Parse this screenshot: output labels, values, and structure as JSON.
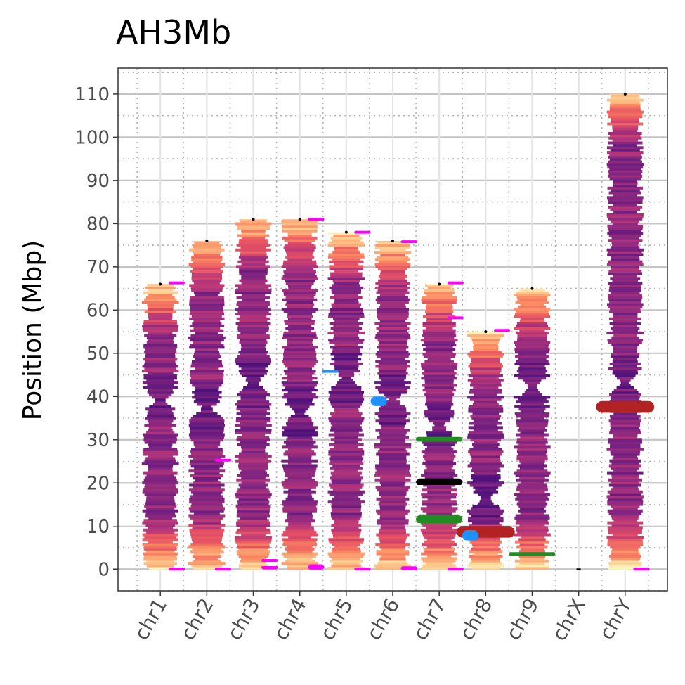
{
  "chart_data": {
    "type": "ideogram",
    "title": "AH3Mb",
    "ylabel": "Position (Mbp)",
    "xlabel": "",
    "ylim": [
      -5,
      116
    ],
    "yticks": [
      0,
      10,
      20,
      30,
      40,
      50,
      60,
      70,
      80,
      90,
      100,
      110
    ],
    "ytick_labels": [
      "0",
      "10",
      "20",
      "30",
      "40",
      "50",
      "60",
      "70",
      "80",
      "90",
      "100",
      "110"
    ],
    "grid": true,
    "legend": "none",
    "colormap": "magma",
    "chromosomes": [
      {
        "name": "chr1",
        "length": 66,
        "centromere": 39
      },
      {
        "name": "chr2",
        "length": 76,
        "centromere": 37
      },
      {
        "name": "chr3",
        "length": 81,
        "centromere": 43
      },
      {
        "name": "chr4",
        "length": 81,
        "centromere": 36
      },
      {
        "name": "chr5",
        "length": 78,
        "centromere": 44
      },
      {
        "name": "chr6",
        "length": 76,
        "centromere": 39
      },
      {
        "name": "chr7",
        "length": 66,
        "centromere": 33
      },
      {
        "name": "chr8",
        "length": 55,
        "centromere": 16
      },
      {
        "name": "chr9",
        "length": 65,
        "centromere": 42
      },
      {
        "name": "chrX",
        "length": 0,
        "centromere": 0
      },
      {
        "name": "chrY",
        "length": 110,
        "centromere": 43
      }
    ],
    "markers": [
      {
        "chrom": "chr1",
        "pos": 66.3,
        "color": "#ff00ff",
        "offset": 0.35,
        "width": 0.35,
        "thick": 0.6
      },
      {
        "chrom": "chr1",
        "pos": 0,
        "color": "#ff00ff",
        "offset": 0.35,
        "width": 0.35,
        "thick": 0.6
      },
      {
        "chrom": "chr2",
        "pos": 25.3,
        "color": "#ff00ff",
        "offset": 0.35,
        "width": 0.35,
        "thick": 0.6
      },
      {
        "chrom": "chr2",
        "pos": 0,
        "color": "#ff00ff",
        "offset": 0.35,
        "width": 0.35,
        "thick": 0.6
      },
      {
        "chrom": "chr3",
        "pos": 2.0,
        "color": "#ff00ff",
        "offset": 0.35,
        "width": 0.35,
        "thick": 0.6
      },
      {
        "chrom": "chr3",
        "pos": 0.4,
        "color": "#ff00ff",
        "offset": 0.35,
        "width": 0.35,
        "thick": 0.9
      },
      {
        "chrom": "chr4",
        "pos": 81,
        "color": "#ff00ff",
        "offset": 0.35,
        "width": 0.35,
        "thick": 0.6
      },
      {
        "chrom": "chr4",
        "pos": 0.5,
        "color": "#ff00ff",
        "offset": 0.35,
        "width": 0.35,
        "thick": 1.2
      },
      {
        "chrom": "chr5",
        "pos": 78,
        "color": "#ff00ff",
        "offset": 0.35,
        "width": 0.35,
        "thick": 0.6
      },
      {
        "chrom": "chr5",
        "pos": 0,
        "color": "#ff00ff",
        "offset": 0.35,
        "width": 0.35,
        "thick": 0.6
      },
      {
        "chrom": "chr5",
        "pos": 45.8,
        "color": "#1e90ff",
        "offset": -0.35,
        "width": 0.35,
        "thick": 0.6
      },
      {
        "chrom": "chr6",
        "pos": 75.8,
        "color": "#ff00ff",
        "offset": 0.35,
        "width": 0.35,
        "thick": 0.6
      },
      {
        "chrom": "chr6",
        "pos": 0.2,
        "color": "#ff00ff",
        "offset": 0.35,
        "width": 0.35,
        "thick": 0.9
      },
      {
        "chrom": "chr6",
        "pos": 38.9,
        "color": "#1e90ff",
        "offset": -0.3,
        "width": 0.35,
        "thick": 2.2
      },
      {
        "chrom": "chr7",
        "pos": 66.3,
        "color": "#ff00ff",
        "offset": 0.35,
        "width": 0.35,
        "thick": 0.6
      },
      {
        "chrom": "chr7",
        "pos": 58.2,
        "color": "#ff00ff",
        "offset": 0.35,
        "width": 0.35,
        "thick": 0.6
      },
      {
        "chrom": "chr7",
        "pos": 0,
        "color": "#ff00ff",
        "offset": 0.35,
        "width": 0.35,
        "thick": 0.6
      },
      {
        "chrom": "chr7",
        "pos": 30.1,
        "color": "#228b22",
        "offset": 0,
        "width": 1.0,
        "thick": 1.1
      },
      {
        "chrom": "chr7",
        "pos": 20.2,
        "color": "#000000",
        "offset": 0,
        "width": 1.0,
        "thick": 1.4
      },
      {
        "chrom": "chr7",
        "pos": 11.6,
        "color": "#228b22",
        "offset": 0,
        "width": 1.0,
        "thick": 2.0
      },
      {
        "chrom": "chr8",
        "pos": 55.3,
        "color": "#ff00ff",
        "offset": 0.35,
        "width": 0.35,
        "thick": 0.6
      },
      {
        "chrom": "chr8",
        "pos": 8.6,
        "color": "#b22222",
        "offset": 0,
        "width": 1.25,
        "thick": 2.7
      },
      {
        "chrom": "chr8",
        "pos": 7.8,
        "color": "#1e90ff",
        "offset": -0.33,
        "width": 0.35,
        "thick": 2.4
      },
      {
        "chrom": "chr9",
        "pos": 3.5,
        "color": "#228b22",
        "offset": 0,
        "width": 1.0,
        "thick": 0.8
      },
      {
        "chrom": "chrY",
        "pos": 37.6,
        "color": "#b22222",
        "offset": 0,
        "width": 1.25,
        "thick": 2.7
      },
      {
        "chrom": "chrY",
        "pos": 0,
        "color": "#ff00ff",
        "offset": 0.35,
        "width": 0.35,
        "thick": 0.6
      }
    ]
  }
}
